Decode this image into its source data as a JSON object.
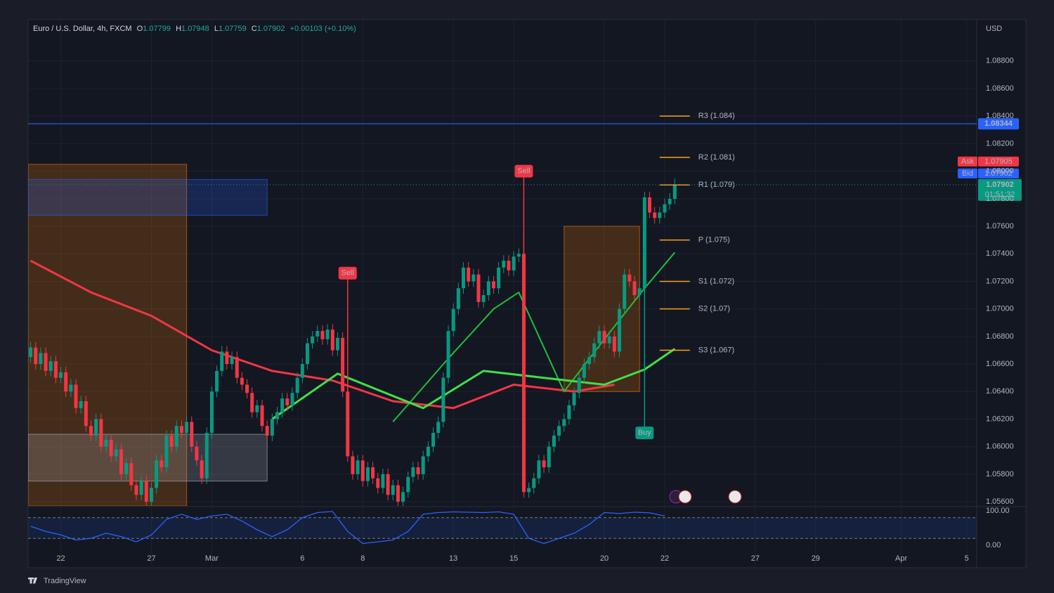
{
  "header": {
    "symbol": "Euro / U.S. Dollar, 4h, FXCM",
    "o_key": "O",
    "o_val": "1.07799",
    "h_key": "H",
    "h_val": "1.07948",
    "l_key": "L",
    "l_val": "1.07759",
    "c_key": "C",
    "c_val": "1.07902",
    "change": "+0.00103 (+0.10%)",
    "currency": "USD"
  },
  "footer": {
    "brand": "TradingView"
  },
  "chart_data": {
    "type": "candlestick",
    "up_color": "#089981",
    "down_color": "#f23645",
    "grid": true,
    "x": [
      -6,
      -5,
      -4,
      -3,
      -2,
      -1,
      0,
      1,
      2,
      3,
      4,
      5,
      6,
      7,
      8,
      9,
      10,
      11,
      12,
      13,
      14,
      15,
      16,
      17,
      18,
      19,
      20,
      21,
      22,
      23,
      24,
      25,
      26,
      27,
      28,
      29,
      30,
      31,
      32,
      33,
      34,
      35,
      36,
      37,
      38,
      39,
      40,
      41,
      42,
      43,
      44,
      45,
      46,
      47,
      48,
      49,
      50,
      51,
      52,
      53,
      54,
      55,
      56,
      57,
      58,
      59,
      60,
      61,
      62,
      63,
      64,
      65,
      66,
      67,
      68,
      69,
      70,
      71,
      72,
      73,
      74,
      75,
      76,
      77,
      78,
      79,
      80,
      81,
      82,
      83,
      84,
      85,
      86,
      87,
      88,
      89,
      90,
      91,
      92,
      93,
      94,
      95,
      96,
      97,
      98,
      99,
      100,
      101,
      102,
      103,
      104,
      105,
      106,
      107,
      108,
      109,
      110,
      111,
      112,
      113,
      114,
      115,
      116,
      117,
      118,
      119,
      120,
      121,
      122
    ],
    "open": [
      1.0665,
      1.0672,
      1.066,
      1.0668,
      1.0655,
      1.0662,
      1.065,
      1.0654,
      1.064,
      1.0645,
      1.0628,
      1.0633,
      1.0615,
      1.0608,
      1.062,
      1.06,
      1.0605,
      1.0593,
      1.0598,
      1.058,
      1.0588,
      1.0572,
      1.0565,
      1.0575,
      1.056,
      1.057,
      1.059,
      1.0585,
      1.0608,
      1.06,
      1.0615,
      1.061,
      1.0618,
      1.06,
      1.059,
      1.0577,
      1.061,
      1.064,
      1.0655,
      1.0669,
      1.066,
      1.0665,
      1.065,
      1.0645,
      1.0639,
      1.0625,
      1.063,
      1.0615,
      1.0608,
      1.062,
      1.0625,
      1.0635,
      1.063,
      1.0639,
      1.065,
      1.066,
      1.0675,
      1.068,
      1.0684,
      1.0678,
      1.0685,
      1.067,
      1.0679,
      1.064,
      1.0593,
      1.058,
      1.059,
      1.0575,
      1.0585,
      1.0577,
      1.057,
      1.058,
      1.0565,
      1.0572,
      1.056,
      1.0567,
      1.0578,
      1.0585,
      1.058,
      1.0593,
      1.06,
      1.061,
      1.0618,
      1.065,
      1.0684,
      1.07,
      1.0715,
      1.073,
      1.072,
      1.0725,
      1.0705,
      1.071,
      1.072,
      1.0715,
      1.073,
      1.0735,
      1.0728,
      1.0738,
      1.074,
      1.0567,
      1.057,
      1.0577,
      1.059,
      1.0585,
      1.06,
      1.0608,
      1.0615,
      1.062,
      1.063,
      1.0639,
      1.065,
      1.066,
      1.0665,
      1.0675,
      1.0684,
      1.0675,
      1.068,
      1.0669,
      1.07,
      1.0725,
      1.072,
      1.071,
      1.0715,
      1.0781,
      1.077,
      1.0766,
      1.077,
      1.0776,
      1.07799
    ],
    "high": [
      1.0676,
      1.0676,
      1.0672,
      1.0672,
      1.0666,
      1.0666,
      1.0658,
      1.0658,
      1.0649,
      1.0649,
      1.0637,
      1.0637,
      1.0619,
      1.0624,
      1.0624,
      1.0609,
      1.0609,
      1.0602,
      1.0602,
      1.0592,
      1.0592,
      1.0576,
      1.0579,
      1.0579,
      1.0574,
      1.0594,
      1.0594,
      1.0612,
      1.0612,
      1.0619,
      1.0619,
      1.0622,
      1.0622,
      1.0604,
      1.0594,
      1.0614,
      1.0644,
      1.0659,
      1.0673,
      1.0673,
      1.0669,
      1.0669,
      1.0654,
      1.0649,
      1.0643,
      1.0634,
      1.0634,
      1.0619,
      1.0624,
      1.0629,
      1.0639,
      1.0639,
      1.0643,
      1.0654,
      1.0664,
      1.0679,
      1.0684,
      1.0688,
      1.0688,
      1.0689,
      1.0689,
      1.0683,
      1.0683,
      1.0644,
      1.0597,
      1.0594,
      1.0594,
      1.0589,
      1.0589,
      1.0581,
      1.0584,
      1.0584,
      1.0576,
      1.0576,
      1.0571,
      1.0582,
      1.0589,
      1.0589,
      1.0597,
      1.0604,
      1.0614,
      1.0622,
      1.0654,
      1.0688,
      1.0704,
      1.0719,
      1.0734,
      1.0734,
      1.0729,
      1.0729,
      1.0714,
      1.0724,
      1.0724,
      1.0734,
      1.0739,
      1.0739,
      1.0742,
      1.0744,
      1.0744,
      1.0574,
      1.0581,
      1.0594,
      1.0594,
      1.0604,
      1.0612,
      1.0619,
      1.0624,
      1.0634,
      1.0643,
      1.0654,
      1.0664,
      1.0669,
      1.0679,
      1.0688,
      1.0688,
      1.0684,
      1.0684,
      1.0704,
      1.0729,
      1.0729,
      1.0724,
      1.0719,
      1.0785,
      1.0785,
      1.0774,
      1.0774,
      1.078,
      1.0784,
      1.07948
    ],
    "low": [
      1.0661,
      1.0656,
      1.0656,
      1.0651,
      1.0651,
      1.0646,
      1.0646,
      1.0636,
      1.0636,
      1.0624,
      1.0624,
      1.0611,
      1.0604,
      1.0604,
      1.0596,
      1.0596,
      1.0589,
      1.0589,
      1.0576,
      1.0576,
      1.0568,
      1.0561,
      1.0561,
      1.0556,
      1.0556,
      1.0566,
      1.0581,
      1.0581,
      1.0596,
      1.0596,
      1.0606,
      1.0606,
      1.0596,
      1.0586,
      1.0573,
      1.0573,
      1.0606,
      1.0636,
      1.0651,
      1.0656,
      1.0656,
      1.0646,
      1.0641,
      1.0635,
      1.0621,
      1.0621,
      1.0611,
      1.0604,
      1.0604,
      1.0616,
      1.0621,
      1.0626,
      1.0626,
      1.0635,
      1.0646,
      1.0656,
      1.0671,
      1.0676,
      1.0674,
      1.0674,
      1.0666,
      1.0666,
      1.0636,
      1.0589,
      1.0576,
      1.0576,
      1.0571,
      1.0571,
      1.0573,
      1.0566,
      1.0566,
      1.0561,
      1.0561,
      1.0556,
      1.0556,
      1.0563,
      1.0574,
      1.0576,
      1.0576,
      1.0589,
      1.0596,
      1.0606,
      1.0614,
      1.0646,
      1.068,
      1.0696,
      1.0711,
      1.0716,
      1.0716,
      1.0701,
      1.0701,
      1.0706,
      1.0711,
      1.0711,
      1.0726,
      1.0724,
      1.0724,
      1.0734,
      1.0563,
      1.0563,
      1.0566,
      1.0573,
      1.0581,
      1.0581,
      1.0596,
      1.0604,
      1.0611,
      1.0616,
      1.0626,
      1.0635,
      1.0646,
      1.0656,
      1.0661,
      1.0671,
      1.0671,
      1.0671,
      1.0665,
      1.0665,
      1.0696,
      1.0716,
      1.0706,
      1.0706,
      1.0711,
      1.0766,
      1.0762,
      1.0762,
      1.0766,
      1.0772,
      1.07759
    ],
    "close": [
      1.0672,
      1.066,
      1.0668,
      1.0655,
      1.0662,
      1.065,
      1.0654,
      1.064,
      1.0645,
      1.0628,
      1.0633,
      1.0615,
      1.0608,
      1.062,
      1.06,
      1.0605,
      1.0593,
      1.0598,
      1.058,
      1.0588,
      1.0572,
      1.0565,
      1.0575,
      1.056,
      1.057,
      1.059,
      1.0585,
      1.0608,
      1.06,
      1.0615,
      1.061,
      1.0618,
      1.06,
      1.059,
      1.0577,
      1.061,
      1.064,
      1.0655,
      1.0669,
      1.066,
      1.0665,
      1.065,
      1.0645,
      1.0639,
      1.0625,
      1.063,
      1.0615,
      1.0608,
      1.062,
      1.0625,
      1.0635,
      1.063,
      1.0639,
      1.065,
      1.066,
      1.0675,
      1.068,
      1.0684,
      1.0678,
      1.0685,
      1.067,
      1.0679,
      1.064,
      1.0593,
      1.058,
      1.059,
      1.0575,
      1.0585,
      1.0577,
      1.057,
      1.058,
      1.0565,
      1.0572,
      1.056,
      1.0567,
      1.0578,
      1.0585,
      1.058,
      1.0593,
      1.06,
      1.061,
      1.0618,
      1.065,
      1.0684,
      1.07,
      1.0715,
      1.073,
      1.072,
      1.0725,
      1.0705,
      1.071,
      1.072,
      1.0715,
      1.073,
      1.0735,
      1.0728,
      1.0738,
      1.074,
      1.0567,
      1.057,
      1.0577,
      1.059,
      1.0585,
      1.06,
      1.0608,
      1.0615,
      1.062,
      1.063,
      1.0639,
      1.065,
      1.066,
      1.0665,
      1.0675,
      1.0684,
      1.0675,
      1.068,
      1.0669,
      1.07,
      1.0725,
      1.072,
      1.071,
      1.0715,
      1.0781,
      1.077,
      1.0766,
      1.077,
      1.0776,
      1.07799,
      1.07902
    ],
    "xlim": [
      -6.5,
      182
    ],
    "xticks": [
      {
        "value": 0,
        "label": "22"
      },
      {
        "value": 18,
        "label": "27"
      },
      {
        "value": 30,
        "label": "Mar"
      },
      {
        "value": 48,
        "label": "6"
      },
      {
        "value": 60,
        "label": "8"
      },
      {
        "value": 78,
        "label": "13"
      },
      {
        "value": 90,
        "label": "15"
      },
      {
        "value": 108,
        "label": "20"
      },
      {
        "value": 120,
        "label": "22"
      },
      {
        "value": 138,
        "label": "27"
      },
      {
        "value": 150,
        "label": "29"
      },
      {
        "value": 167,
        "label": "Apr"
      },
      {
        "value": 180,
        "label": "5"
      }
    ],
    "ylim": [
      1.0557,
      1.091
    ],
    "yticks": [
      {
        "value": 1.088,
        "label": "1.08800"
      },
      {
        "value": 1.086,
        "label": "1.08600"
      },
      {
        "value": 1.084,
        "label": "1.08400"
      },
      {
        "value": 1.082,
        "label": "1.08200"
      },
      {
        "value": 1.08,
        "label": "1.08000"
      },
      {
        "value": 1.078,
        "label": "1.07800"
      },
      {
        "value": 1.076,
        "label": "1.07600"
      },
      {
        "value": 1.074,
        "label": "1.07400"
      },
      {
        "value": 1.072,
        "label": "1.07200"
      },
      {
        "value": 1.07,
        "label": "1.07000"
      },
      {
        "value": 1.068,
        "label": "1.06800"
      },
      {
        "value": 1.066,
        "label": "1.06600"
      },
      {
        "value": 1.064,
        "label": "1.06400"
      },
      {
        "value": 1.062,
        "label": "1.06200"
      },
      {
        "value": 1.06,
        "label": "1.06000"
      },
      {
        "value": 1.058,
        "label": "1.05800"
      },
      {
        "value": 1.056,
        "label": "1.05600"
      }
    ],
    "price_line": {
      "value": 1.08344,
      "color": "#2962ff"
    },
    "ask": {
      "tag": "Ask",
      "value": 1.07905,
      "color": "#f23645"
    },
    "bid": {
      "tag": "Bid",
      "value": 1.07902,
      "color": "#2962ff"
    },
    "last": {
      "value": 1.07902,
      "countdown": "01:51:32",
      "color": "#089981"
    },
    "pivots": [
      {
        "label": "R3 (1.084)",
        "value": 1.084
      },
      {
        "label": "R2 (1.081)",
        "value": 1.081
      },
      {
        "label": "R1 (1.079)",
        "value": 1.079
      },
      {
        "label": "P (1.075)",
        "value": 1.075
      },
      {
        "label": "S1 (1.072)",
        "value": 1.072
      },
      {
        "label": "S2 (1.07)",
        "value": 1.07
      },
      {
        "label": "S3 (1.067)",
        "value": 1.067
      }
    ],
    "pivot_color": "#f7a21b",
    "pivot_span": [
      119,
      125
    ],
    "zones": [
      {
        "x0": -6.5,
        "x1": 25,
        "top": 1.0805,
        "bottom": 1.0557,
        "color": "#f57c00"
      },
      {
        "x0": 100,
        "x1": 115,
        "top": 1.076,
        "bottom": 1.064,
        "color": "#f57c00"
      },
      {
        "x0": -6.5,
        "x1": 41,
        "top": 1.0794,
        "bottom": 1.0768,
        "color": "#2962ff"
      },
      {
        "x0": -6.5,
        "x1": 41,
        "top": 1.0609,
        "bottom": 1.0575,
        "color": "#b2b5be"
      }
    ],
    "signals": [
      {
        "label": "Sell",
        "x": 57,
        "y": 1.0726,
        "color": "#f23645"
      },
      {
        "label": "Sell",
        "x": 92,
        "y": 1.08,
        "color": "#f23645"
      },
      {
        "label": "Buy",
        "x": 116,
        "y": 1.061,
        "color": "#089981"
      }
    ],
    "ma": [
      {
        "color": "#f23645",
        "width": 3,
        "x": [
          -6,
          6,
          18,
          30,
          42,
          54,
          66,
          78,
          90,
          102,
          110
        ],
        "values": [
          1.0735,
          1.0712,
          1.0695,
          1.067,
          1.0655,
          1.0648,
          1.0633,
          1.0628,
          1.0645,
          1.064,
          1.0645
        ]
      },
      {
        "color": "#1fbf3a",
        "width": 2,
        "x": [
          66,
          77,
          86,
          91,
          100,
          108,
          116,
          122
        ],
        "values": [
          1.0618,
          1.0664,
          1.07,
          1.0712,
          1.064,
          1.0678,
          1.0715,
          1.0741
        ]
      },
      {
        "color": "#3fe04a",
        "width": 3,
        "x": [
          42,
          55,
          72,
          84,
          108,
          116,
          122
        ],
        "values": [
          1.062,
          1.0653,
          1.0628,
          1.0655,
          1.0645,
          1.0656,
          1.0671
        ]
      }
    ],
    "oscillator": {
      "ylim": [
        0,
        100
      ],
      "yticks": [
        {
          "value": 100,
          "label": "100.00"
        },
        {
          "value": 0,
          "label": "0.00"
        }
      ],
      "bands": [
        80,
        20
      ],
      "color": "#2962ff",
      "x": [
        -6,
        -3,
        0,
        3,
        6,
        9,
        12,
        15,
        18,
        21,
        24,
        27,
        30,
        33,
        36,
        39,
        42,
        45,
        48,
        51,
        54,
        57,
        60,
        63,
        66,
        69,
        72,
        75,
        78,
        81,
        84,
        87,
        90,
        93,
        96,
        99,
        102,
        105,
        108,
        111,
        114,
        117,
        120
      ],
      "values": [
        55,
        40,
        30,
        15,
        20,
        35,
        25,
        10,
        30,
        75,
        90,
        75,
        85,
        90,
        70,
        45,
        25,
        45,
        80,
        95,
        98,
        40,
        5,
        10,
        15,
        40,
        90,
        95,
        97,
        96,
        95,
        97,
        90,
        20,
        5,
        20,
        35,
        60,
        95,
        92,
        96,
        94,
        85
      ]
    }
  }
}
